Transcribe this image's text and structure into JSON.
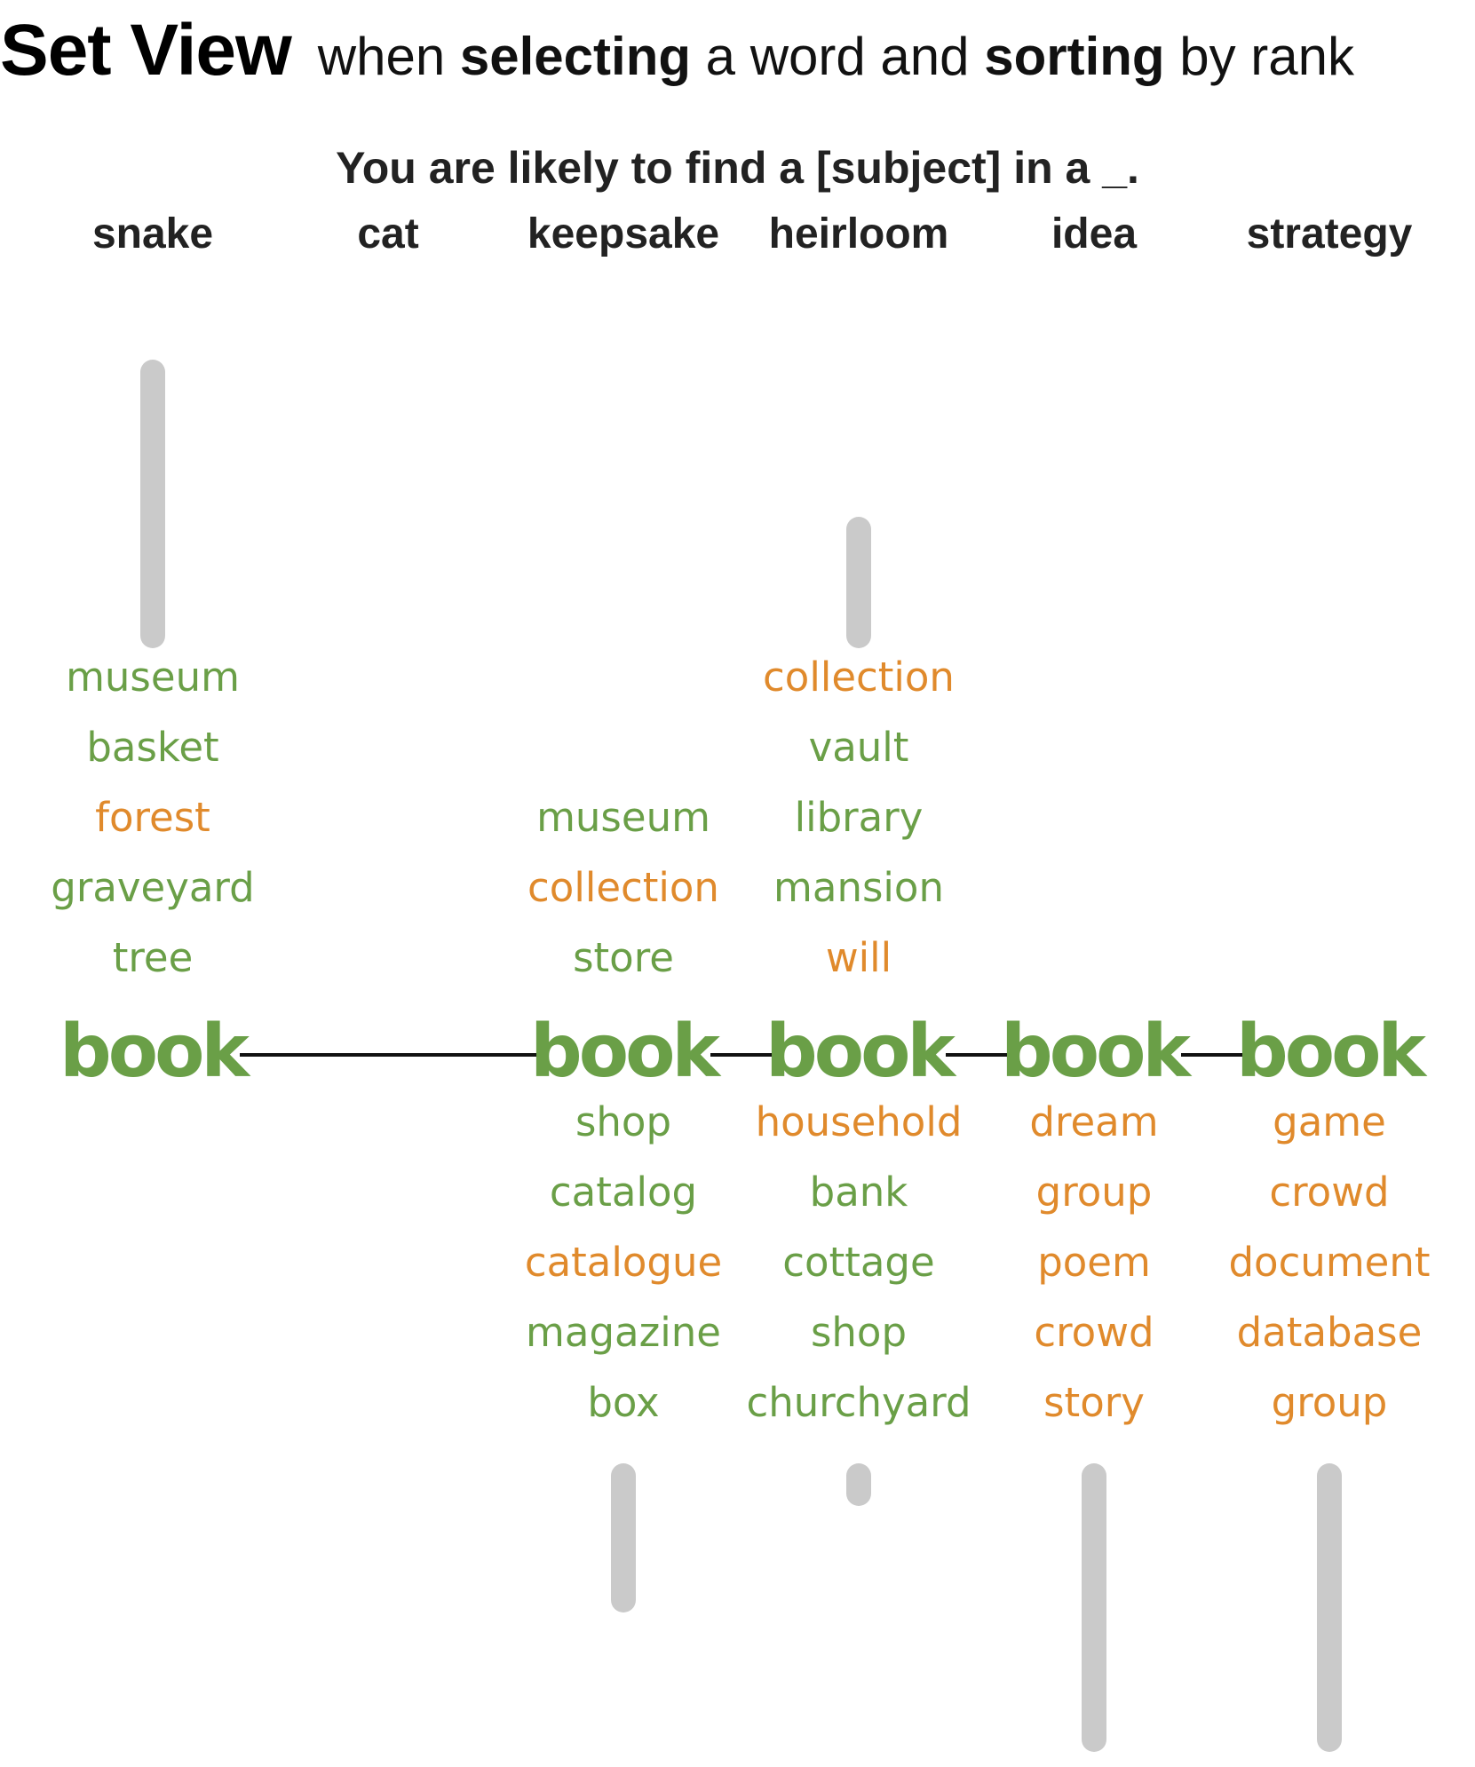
{
  "heading": {
    "title": "Set View",
    "sub_parts": [
      "when",
      "selecting",
      "a word and",
      "sorting",
      "by rank"
    ]
  },
  "prompt": "You are likely to find a [subject] in a _.",
  "colors": {
    "green": "#6a9f47",
    "orange": "#e08a2c",
    "bar": "#cacaca",
    "connector": "#111111"
  },
  "columns": [
    {
      "subject": "snake",
      "center": "book",
      "above": [
        {
          "word": "museum",
          "color": "green"
        },
        {
          "word": "basket",
          "color": "green"
        },
        {
          "word": "forest",
          "color": "orange"
        },
        {
          "word": "graveyard",
          "color": "green"
        },
        {
          "word": "tree",
          "color": "green"
        }
      ],
      "below": [],
      "bar_above": "long",
      "bar_below": "none"
    },
    {
      "subject": "cat",
      "center": "",
      "above": [],
      "below": [],
      "bar_above": "none",
      "bar_below": "none"
    },
    {
      "subject": "keepsake",
      "center": "book",
      "above": [
        {
          "word": "museum",
          "color": "green"
        },
        {
          "word": "collection",
          "color": "orange"
        },
        {
          "word": "store",
          "color": "green"
        }
      ],
      "below": [
        {
          "word": "shop",
          "color": "green"
        },
        {
          "word": "catalog",
          "color": "green"
        },
        {
          "word": "catalogue",
          "color": "orange"
        },
        {
          "word": "magazine",
          "color": "green"
        },
        {
          "word": "box",
          "color": "green"
        }
      ],
      "bar_above": "none",
      "bar_below": "medium"
    },
    {
      "subject": "heirloom",
      "center": "book",
      "above": [
        {
          "word": "collection",
          "color": "orange"
        },
        {
          "word": "vault",
          "color": "green"
        },
        {
          "word": "library",
          "color": "green"
        },
        {
          "word": "mansion",
          "color": "green"
        },
        {
          "word": "will",
          "color": "orange"
        }
      ],
      "below": [
        {
          "word": "household",
          "color": "orange"
        },
        {
          "word": "bank",
          "color": "green"
        },
        {
          "word": "cottage",
          "color": "green"
        },
        {
          "word": "shop",
          "color": "green"
        },
        {
          "word": "churchyard",
          "color": "green"
        }
      ],
      "bar_above": "short",
      "bar_below": "tiny"
    },
    {
      "subject": "idea",
      "center": "book",
      "above": [],
      "below": [
        {
          "word": "dream",
          "color": "orange"
        },
        {
          "word": "group",
          "color": "orange"
        },
        {
          "word": "poem",
          "color": "orange"
        },
        {
          "word": "crowd",
          "color": "orange"
        },
        {
          "word": "story",
          "color": "orange"
        }
      ],
      "bar_above": "none",
      "bar_below": "long"
    },
    {
      "subject": "strategy",
      "center": "book",
      "above": [],
      "below": [
        {
          "word": "game",
          "color": "orange"
        },
        {
          "word": "crowd",
          "color": "orange"
        },
        {
          "word": "document",
          "color": "orange"
        },
        {
          "word": "database",
          "color": "orange"
        },
        {
          "word": "group",
          "color": "orange"
        }
      ],
      "bar_above": "none",
      "bar_below": "long"
    }
  ]
}
